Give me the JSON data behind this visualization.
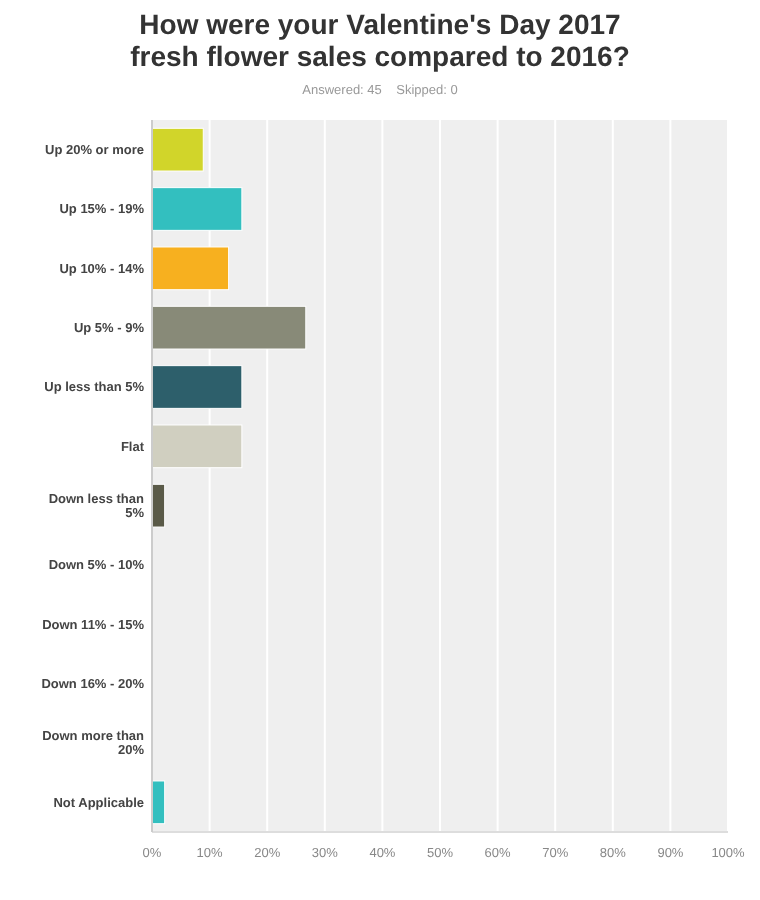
{
  "chart_data": {
    "type": "bar",
    "orientation": "horizontal",
    "title": "How were your Valentine's Day 2017 fresh flower sales compared to 2016?",
    "subtitle": "Answered: 45    Skipped: 0",
    "categories": [
      "Up 20% or more",
      "Up 15% - 19%",
      "Up 10% - 14%",
      "Up 5% - 9%",
      "Up less than 5%",
      "Flat",
      "Down less than 5%",
      "Down 5% - 10%",
      "Down 11% - 15%",
      "Down 16% - 20%",
      "Down more than 20%",
      "Not Applicable"
    ],
    "values": [
      8.9,
      15.6,
      13.3,
      26.7,
      15.6,
      15.6,
      2.2,
      0,
      0,
      0,
      0,
      2.2
    ],
    "colors": [
      "#d1d52a",
      "#33bfbf",
      "#f7b01f",
      "#888a78",
      "#2d5f6b",
      "#d0cfc0",
      "#5a5a48",
      "#5a5a48",
      "#5a5a48",
      "#5a5a48",
      "#5a5a48",
      "#33bfbf"
    ],
    "xlim": [
      0,
      100
    ],
    "xticks": [
      {
        "value": 0,
        "label": "0%"
      },
      {
        "value": 10,
        "label": "10%"
      },
      {
        "value": 20,
        "label": "20%"
      },
      {
        "value": 30,
        "label": "30%"
      },
      {
        "value": 40,
        "label": "40%"
      },
      {
        "value": 50,
        "label": "50%"
      },
      {
        "value": 60,
        "label": "60%"
      },
      {
        "value": 70,
        "label": "70%"
      },
      {
        "value": 80,
        "label": "80%"
      },
      {
        "value": 90,
        "label": "90%"
      },
      {
        "value": 100,
        "label": "100%"
      }
    ],
    "grid": "x"
  }
}
